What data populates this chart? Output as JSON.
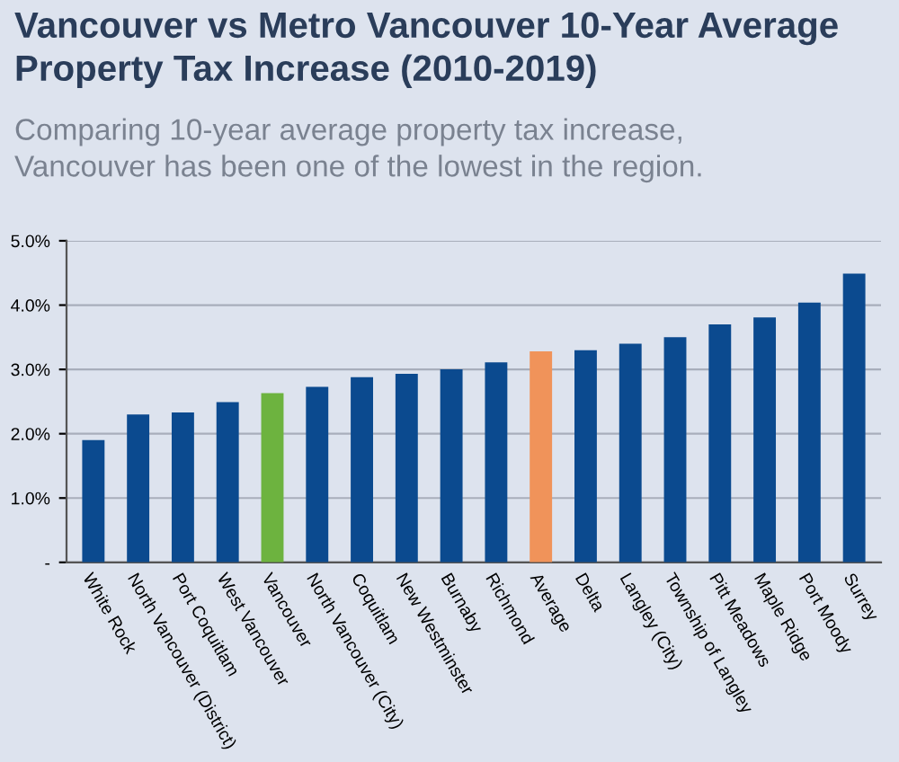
{
  "chart_data": {
    "type": "bar",
    "title": "Vancouver vs Metro Vancouver 10-Year Average\nProperty Tax Increase (2010-2019)",
    "subtitle": "Comparing 10-year average property tax increase,\nVancouver has been one of the lowest in the region.",
    "categories": [
      "White Rock",
      "North Vancouver (District)",
      "Port Coquitlam",
      "West Vancouver",
      "Vancouver",
      "North Vancouver (City)",
      "Coquitlam",
      "New Westminster",
      "Burnaby",
      "Richmond",
      "Average",
      "Delta",
      "Langley (City)",
      "Township of Langley",
      "Pitt Meadows",
      "Maple Ridge",
      "Port Moody",
      "Surrey"
    ],
    "values": [
      1.9,
      2.3,
      2.33,
      2.49,
      2.63,
      2.73,
      2.88,
      2.93,
      3.0,
      3.11,
      3.28,
      3.3,
      3.4,
      3.5,
      3.7,
      3.81,
      4.04,
      4.49
    ],
    "colors": [
      "#0b4a8f",
      "#0b4a8f",
      "#0b4a8f",
      "#0b4a8f",
      "#6db33f",
      "#0b4a8f",
      "#0b4a8f",
      "#0b4a8f",
      "#0b4a8f",
      "#0b4a8f",
      "#f0935a",
      "#0b4a8f",
      "#0b4a8f",
      "#0b4a8f",
      "#0b4a8f",
      "#0b4a8f",
      "#0b4a8f",
      "#0b4a8f"
    ],
    "ylim": [
      0,
      5
    ],
    "yticks": [
      {
        "value": 0,
        "label": "-"
      },
      {
        "value": 1,
        "label": "1.0%"
      },
      {
        "value": 2,
        "label": "2.0%"
      },
      {
        "value": 3,
        "label": "3.0%"
      },
      {
        "value": 4,
        "label": "4.0%"
      },
      {
        "value": 5,
        "label": "5.0%"
      }
    ],
    "grid": "y"
  }
}
